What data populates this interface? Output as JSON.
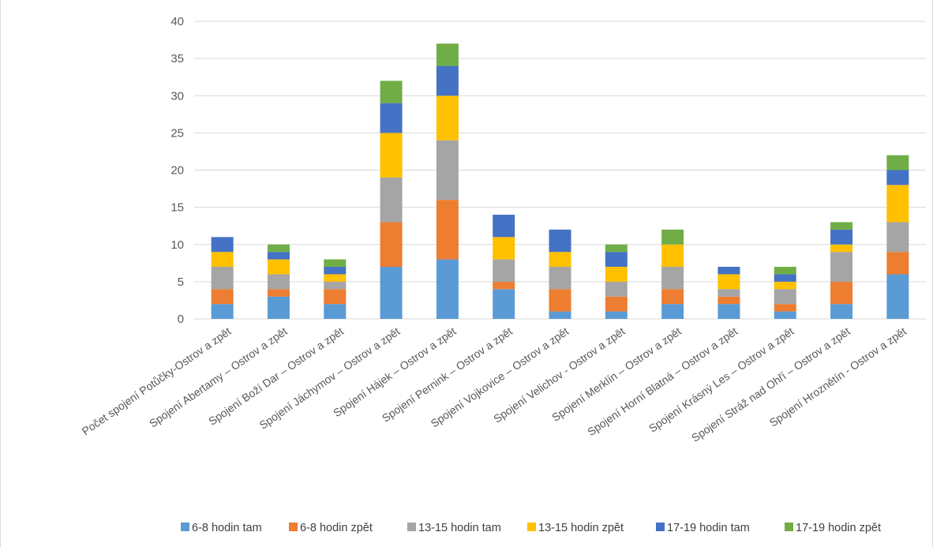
{
  "chart_data": {
    "type": "bar",
    "stacked": true,
    "title": "",
    "xlabel": "",
    "ylabel": "",
    "ylim": [
      0,
      40
    ],
    "yticks": [
      0,
      5,
      10,
      15,
      20,
      25,
      30,
      35,
      40
    ],
    "grid": true,
    "legend_position": "bottom",
    "categories": [
      "Počet spojení Potůčky-Ostrov a zpět",
      "Spojení Abertamy – Ostrov a zpět",
      "Spojení Boží Dar – Ostrov a zpět",
      "Spojení Jáchymov – Ostrov a zpět",
      "Spojení Hájek – Ostrov a zpět",
      "Spojení Pernink – Ostrov a zpět",
      "Spojení Vojkovice – Ostrov a zpět",
      "Spojení Velichov  - Ostrov a zpět",
      "Spojení Merklín – Ostrov a zpět",
      "Spojení Horní Blatná – Ostrov a zpět",
      "Spojení Krásný Les – Ostrov a zpět",
      "Spojení Stráž nad Ohří – Ostrov a zpět",
      "Spojení Hroznětín  - Ostrov a zpět"
    ],
    "series": [
      {
        "name": "6-8 hodin tam",
        "color": "#5b9bd5",
        "values": [
          2,
          3,
          2,
          7,
          8,
          4,
          1,
          1,
          2,
          2,
          1,
          2,
          6
        ]
      },
      {
        "name": "6-8 hodin zpět",
        "color": "#ed7d31",
        "values": [
          2,
          1,
          2,
          6,
          8,
          1,
          3,
          2,
          2,
          1,
          1,
          3,
          3
        ]
      },
      {
        "name": "13-15 hodin tam",
        "color": "#a5a5a5",
        "values": [
          3,
          2,
          1,
          6,
          8,
          3,
          3,
          2,
          3,
          1,
          2,
          4,
          4
        ]
      },
      {
        "name": "13-15 hodin zpět",
        "color": "#ffc000",
        "values": [
          2,
          2,
          1,
          6,
          6,
          3,
          2,
          2,
          3,
          2,
          1,
          1,
          5
        ]
      },
      {
        "name": "17-19 hodin tam",
        "color": "#4472c4",
        "values": [
          2,
          1,
          1,
          4,
          4,
          3,
          3,
          2,
          0,
          1,
          1,
          2,
          2
        ]
      },
      {
        "name": "17-19 hodin zpět",
        "color": "#70ad47",
        "values": [
          0,
          1,
          1,
          3,
          3,
          0,
          0,
          1,
          2,
          0,
          1,
          1,
          2
        ]
      }
    ]
  }
}
